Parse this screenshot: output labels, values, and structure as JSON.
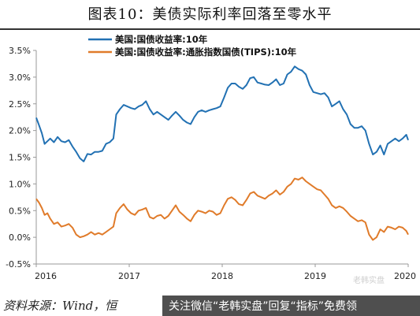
{
  "title": "图表10：美债实际利率回落至零水平",
  "source": "资料来源：Wind，恒",
  "promo": "关注微信“老韩实盘”回复“指标”免费领",
  "watermark": "老韩实盘",
  "colors": {
    "series1": "#2271b3",
    "series2": "#e07b2a",
    "axis": "#999999",
    "text": "#222222"
  },
  "chart_data": {
    "type": "line",
    "title": "",
    "xlabel": "",
    "ylabel": "",
    "ylim": [
      -0.5,
      3.5
    ],
    "xlim": [
      2016.0,
      2020.0
    ],
    "yticks": [
      "-0.5%",
      "0.0%",
      "0.5%",
      "1.0%",
      "1.5%",
      "2.0%",
      "2.5%",
      "3.0%",
      "3.5%"
    ],
    "ytick_values": [
      -0.5,
      0.0,
      0.5,
      1.0,
      1.5,
      2.0,
      2.5,
      3.0,
      3.5
    ],
    "xticks": [
      "2016",
      "2017",
      "2018",
      "2019",
      "2020"
    ],
    "xtick_values": [
      2016,
      2017,
      2018,
      2019,
      2020
    ],
    "grid": false,
    "legend_position": "top-left",
    "series": [
      {
        "name": "美国:国债收益率:10年",
        "color": "#2271b3",
        "points": [
          [
            2016.0,
            2.24
          ],
          [
            2016.03,
            2.1
          ],
          [
            2016.06,
            1.95
          ],
          [
            2016.09,
            1.75
          ],
          [
            2016.12,
            1.8
          ],
          [
            2016.15,
            1.85
          ],
          [
            2016.19,
            1.78
          ],
          [
            2016.23,
            1.88
          ],
          [
            2016.27,
            1.8
          ],
          [
            2016.31,
            1.78
          ],
          [
            2016.35,
            1.82
          ],
          [
            2016.39,
            1.7
          ],
          [
            2016.43,
            1.6
          ],
          [
            2016.47,
            1.48
          ],
          [
            2016.51,
            1.42
          ],
          [
            2016.55,
            1.56
          ],
          [
            2016.59,
            1.55
          ],
          [
            2016.63,
            1.6
          ],
          [
            2016.67,
            1.6
          ],
          [
            2016.71,
            1.62
          ],
          [
            2016.75,
            1.75
          ],
          [
            2016.79,
            1.78
          ],
          [
            2016.83,
            1.85
          ],
          [
            2016.86,
            2.3
          ],
          [
            2016.9,
            2.4
          ],
          [
            2016.94,
            2.48
          ],
          [
            2016.98,
            2.45
          ],
          [
            2017.02,
            2.42
          ],
          [
            2017.06,
            2.4
          ],
          [
            2017.1,
            2.45
          ],
          [
            2017.14,
            2.48
          ],
          [
            2017.18,
            2.55
          ],
          [
            2017.22,
            2.4
          ],
          [
            2017.26,
            2.3
          ],
          [
            2017.3,
            2.35
          ],
          [
            2017.34,
            2.3
          ],
          [
            2017.38,
            2.25
          ],
          [
            2017.42,
            2.2
          ],
          [
            2017.46,
            2.28
          ],
          [
            2017.5,
            2.35
          ],
          [
            2017.54,
            2.28
          ],
          [
            2017.58,
            2.2
          ],
          [
            2017.62,
            2.15
          ],
          [
            2017.66,
            2.12
          ],
          [
            2017.7,
            2.25
          ],
          [
            2017.74,
            2.35
          ],
          [
            2017.78,
            2.38
          ],
          [
            2017.82,
            2.35
          ],
          [
            2017.86,
            2.38
          ],
          [
            2017.9,
            2.4
          ],
          [
            2017.94,
            2.42
          ],
          [
            2017.98,
            2.45
          ],
          [
            2018.02,
            2.62
          ],
          [
            2018.06,
            2.8
          ],
          [
            2018.1,
            2.88
          ],
          [
            2018.14,
            2.88
          ],
          [
            2018.18,
            2.82
          ],
          [
            2018.22,
            2.78
          ],
          [
            2018.26,
            2.85
          ],
          [
            2018.3,
            2.98
          ],
          [
            2018.34,
            3.0
          ],
          [
            2018.38,
            2.9
          ],
          [
            2018.42,
            2.88
          ],
          [
            2018.46,
            2.86
          ],
          [
            2018.5,
            2.85
          ],
          [
            2018.54,
            2.9
          ],
          [
            2018.58,
            2.96
          ],
          [
            2018.62,
            2.85
          ],
          [
            2018.66,
            2.88
          ],
          [
            2018.7,
            3.05
          ],
          [
            2018.74,
            3.1
          ],
          [
            2018.78,
            3.2
          ],
          [
            2018.82,
            3.15
          ],
          [
            2018.86,
            3.12
          ],
          [
            2018.9,
            3.05
          ],
          [
            2018.94,
            2.85
          ],
          [
            2018.98,
            2.72
          ],
          [
            2019.02,
            2.7
          ],
          [
            2019.06,
            2.68
          ],
          [
            2019.1,
            2.7
          ],
          [
            2019.14,
            2.62
          ],
          [
            2019.18,
            2.45
          ],
          [
            2019.22,
            2.5
          ],
          [
            2019.26,
            2.55
          ],
          [
            2019.3,
            2.4
          ],
          [
            2019.34,
            2.3
          ],
          [
            2019.38,
            2.12
          ],
          [
            2019.42,
            2.05
          ],
          [
            2019.46,
            2.05
          ],
          [
            2019.5,
            2.08
          ],
          [
            2019.54,
            2.0
          ],
          [
            2019.58,
            1.75
          ],
          [
            2019.62,
            1.55
          ],
          [
            2019.66,
            1.6
          ],
          [
            2019.7,
            1.72
          ],
          [
            2019.74,
            1.55
          ],
          [
            2019.78,
            1.75
          ],
          [
            2019.82,
            1.8
          ],
          [
            2019.86,
            1.85
          ],
          [
            2019.9,
            1.8
          ],
          [
            2019.94,
            1.85
          ],
          [
            2019.98,
            1.92
          ],
          [
            2020.0,
            1.82
          ]
        ]
      },
      {
        "name": "美国:国债收益率:通胀指数国债(TIPS):10年",
        "color": "#e07b2a",
        "points": [
          [
            2016.0,
            0.72
          ],
          [
            2016.03,
            0.65
          ],
          [
            2016.06,
            0.55
          ],
          [
            2016.09,
            0.42
          ],
          [
            2016.12,
            0.45
          ],
          [
            2016.15,
            0.35
          ],
          [
            2016.19,
            0.25
          ],
          [
            2016.23,
            0.28
          ],
          [
            2016.27,
            0.2
          ],
          [
            2016.31,
            0.22
          ],
          [
            2016.35,
            0.25
          ],
          [
            2016.39,
            0.18
          ],
          [
            2016.43,
            0.05
          ],
          [
            2016.47,
            0.0
          ],
          [
            2016.51,
            0.02
          ],
          [
            2016.55,
            0.05
          ],
          [
            2016.59,
            0.1
          ],
          [
            2016.63,
            0.05
          ],
          [
            2016.67,
            0.08
          ],
          [
            2016.71,
            0.05
          ],
          [
            2016.75,
            0.1
          ],
          [
            2016.79,
            0.15
          ],
          [
            2016.83,
            0.2
          ],
          [
            2016.86,
            0.45
          ],
          [
            2016.9,
            0.55
          ],
          [
            2016.94,
            0.62
          ],
          [
            2016.98,
            0.52
          ],
          [
            2017.02,
            0.45
          ],
          [
            2017.06,
            0.42
          ],
          [
            2017.1,
            0.5
          ],
          [
            2017.14,
            0.52
          ],
          [
            2017.18,
            0.55
          ],
          [
            2017.22,
            0.38
          ],
          [
            2017.26,
            0.35
          ],
          [
            2017.3,
            0.4
          ],
          [
            2017.34,
            0.42
          ],
          [
            2017.38,
            0.35
          ],
          [
            2017.42,
            0.4
          ],
          [
            2017.46,
            0.5
          ],
          [
            2017.5,
            0.6
          ],
          [
            2017.54,
            0.48
          ],
          [
            2017.58,
            0.42
          ],
          [
            2017.62,
            0.35
          ],
          [
            2017.66,
            0.3
          ],
          [
            2017.7,
            0.42
          ],
          [
            2017.74,
            0.5
          ],
          [
            2017.78,
            0.48
          ],
          [
            2017.82,
            0.45
          ],
          [
            2017.86,
            0.5
          ],
          [
            2017.9,
            0.48
          ],
          [
            2017.94,
            0.42
          ],
          [
            2017.98,
            0.45
          ],
          [
            2018.02,
            0.6
          ],
          [
            2018.06,
            0.72
          ],
          [
            2018.1,
            0.75
          ],
          [
            2018.14,
            0.7
          ],
          [
            2018.18,
            0.62
          ],
          [
            2018.22,
            0.6
          ],
          [
            2018.26,
            0.7
          ],
          [
            2018.3,
            0.82
          ],
          [
            2018.34,
            0.85
          ],
          [
            2018.38,
            0.78
          ],
          [
            2018.42,
            0.75
          ],
          [
            2018.46,
            0.72
          ],
          [
            2018.5,
            0.78
          ],
          [
            2018.54,
            0.82
          ],
          [
            2018.58,
            0.88
          ],
          [
            2018.62,
            0.8
          ],
          [
            2018.66,
            0.85
          ],
          [
            2018.7,
            0.95
          ],
          [
            2018.74,
            1.0
          ],
          [
            2018.78,
            1.1
          ],
          [
            2018.82,
            1.08
          ],
          [
            2018.86,
            1.12
          ],
          [
            2018.9,
            1.05
          ],
          [
            2018.94,
            1.0
          ],
          [
            2018.98,
            0.95
          ],
          [
            2019.02,
            0.9
          ],
          [
            2019.06,
            0.88
          ],
          [
            2019.1,
            0.8
          ],
          [
            2019.14,
            0.72
          ],
          [
            2019.18,
            0.6
          ],
          [
            2019.22,
            0.55
          ],
          [
            2019.26,
            0.58
          ],
          [
            2019.3,
            0.55
          ],
          [
            2019.34,
            0.48
          ],
          [
            2019.38,
            0.4
          ],
          [
            2019.42,
            0.35
          ],
          [
            2019.46,
            0.3
          ],
          [
            2019.5,
            0.32
          ],
          [
            2019.54,
            0.28
          ],
          [
            2019.58,
            0.05
          ],
          [
            2019.62,
            -0.05
          ],
          [
            2019.66,
            0.0
          ],
          [
            2019.7,
            0.15
          ],
          [
            2019.74,
            0.1
          ],
          [
            2019.78,
            0.2
          ],
          [
            2019.82,
            0.18
          ],
          [
            2019.86,
            0.15
          ],
          [
            2019.9,
            0.2
          ],
          [
            2019.94,
            0.18
          ],
          [
            2019.98,
            0.12
          ],
          [
            2020.0,
            0.05
          ]
        ]
      }
    ]
  }
}
